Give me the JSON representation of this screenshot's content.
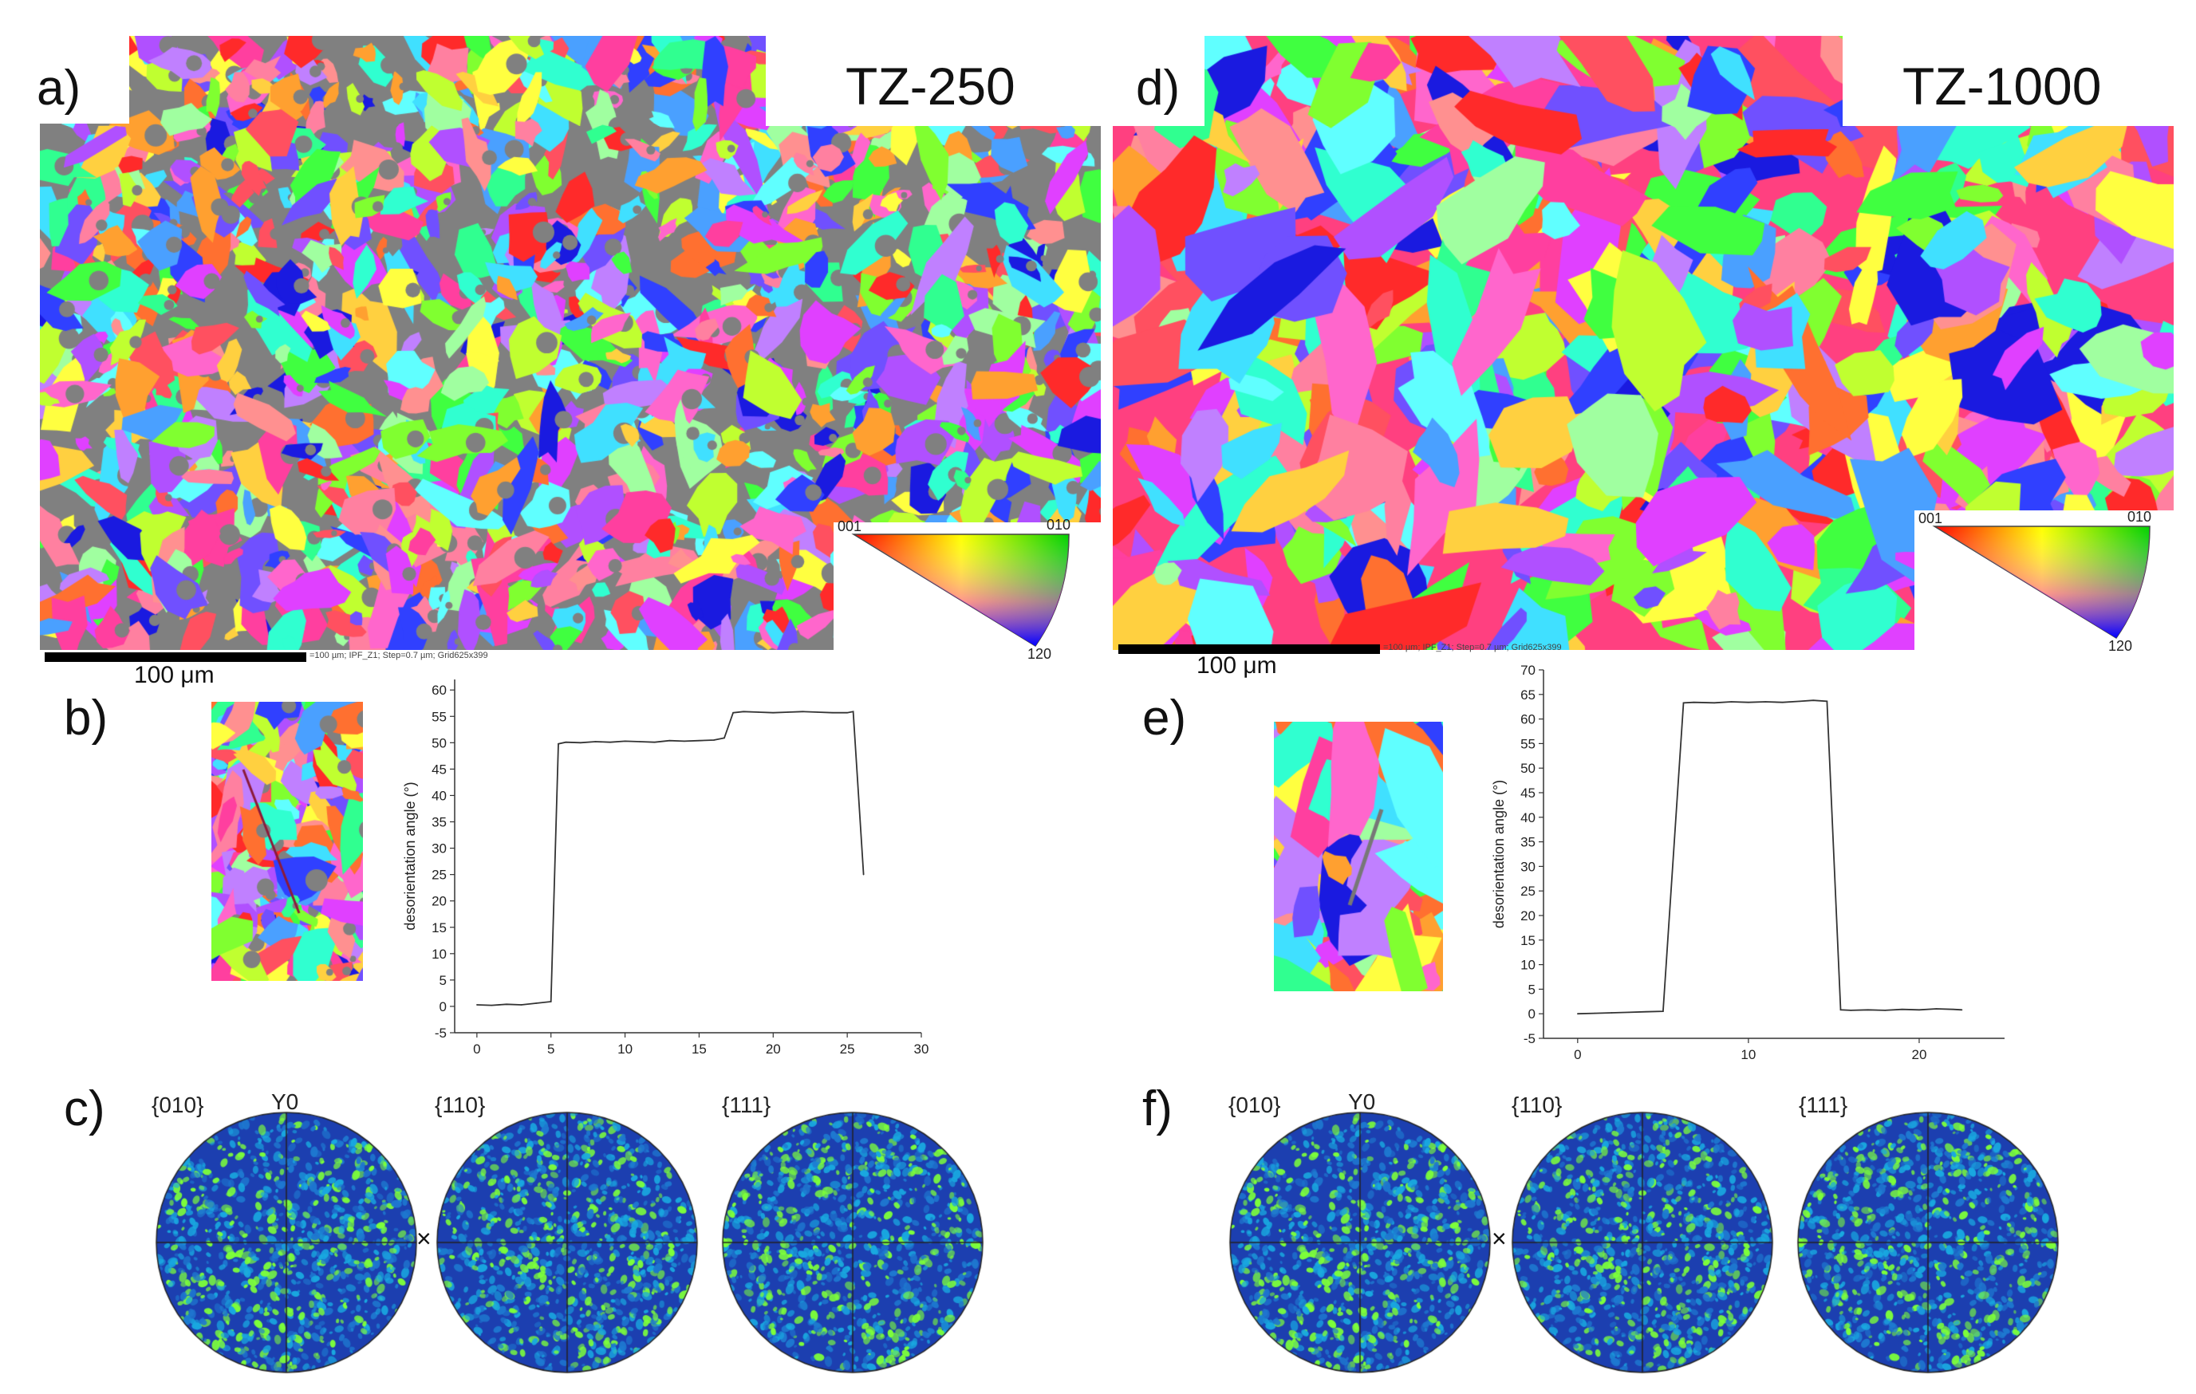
{
  "panels": {
    "a": {
      "letter": "a)",
      "title": "TZ-250",
      "scale_label": "100 μm",
      "info": "=100 µm; IPF_Z1; Step=0.7 µm; Grid625x399"
    },
    "b": {
      "letter": "b)"
    },
    "c": {
      "letter": "c)"
    },
    "d": {
      "letter": "d)",
      "title": "TZ-1000",
      "scale_label": "100 μm",
      "info": "=100 µm; IPF_Z1; Step=0.7 µm; Grid625x399"
    },
    "e": {
      "letter": "e)"
    },
    "f": {
      "letter": "f)"
    }
  },
  "ipf_key": {
    "corner_001": "001",
    "corner_010": "010",
    "corner_120": "120"
  },
  "pole_figures": {
    "labels": [
      "{010}",
      "{110}",
      "{111}"
    ],
    "y0_label": "Y0",
    "x_mark": "×"
  },
  "colors": {
    "grain_gray": "#808080",
    "pf_background": "#1c3fb0",
    "pf_hotspot": "#7dff3a",
    "profile_line": "#333333"
  },
  "chart_data": [
    {
      "type": "line",
      "title": "",
      "xlabel": "",
      "ylabel": "desorientation angle (°)",
      "xlim": [
        -1.5,
        30
      ],
      "ylim": [
        -5,
        62
      ],
      "xticks": [
        0,
        5,
        10,
        15,
        20,
        25,
        30
      ],
      "yticks": [
        -5,
        0,
        5,
        10,
        15,
        20,
        25,
        30,
        35,
        40,
        45,
        50,
        55,
        60
      ],
      "x": [
        0,
        1,
        2,
        3,
        4,
        5,
        5.5,
        6,
        7,
        8,
        9,
        10,
        11,
        12,
        13,
        14,
        15,
        16,
        16.7,
        17.3,
        18,
        19,
        20,
        21,
        22,
        23,
        24,
        25,
        25.4,
        26.1
      ],
      "y": [
        0.3,
        0.2,
        0.4,
        0.3,
        0.6,
        0.9,
        49.8,
        50.1,
        50.0,
        50.2,
        50.1,
        50.3,
        50.2,
        50.1,
        50.4,
        50.3,
        50.4,
        50.5,
        50.9,
        55.7,
        55.9,
        55.8,
        55.7,
        55.8,
        55.9,
        55.8,
        55.7,
        55.7,
        55.9,
        25.0
      ]
    },
    {
      "type": "line",
      "title": "",
      "xlabel": "",
      "ylabel": "desorientation angle (°)",
      "xlim": [
        -2,
        25
      ],
      "ylim": [
        -5,
        70
      ],
      "xticks": [
        0,
        10,
        20
      ],
      "yticks": [
        -5,
        0,
        5,
        10,
        15,
        20,
        25,
        30,
        35,
        40,
        45,
        50,
        55,
        60,
        65,
        70
      ],
      "x": [
        0,
        1,
        2,
        3,
        4,
        5,
        6.2,
        6.8,
        8,
        9,
        10,
        11,
        12,
        13,
        13.8,
        14.6,
        15.4,
        16,
        17,
        18,
        19,
        20,
        21,
        22,
        22.5
      ],
      "y": [
        0.0,
        0.1,
        0.2,
        0.3,
        0.4,
        0.5,
        63.3,
        63.4,
        63.3,
        63.5,
        63.4,
        63.5,
        63.4,
        63.6,
        63.8,
        63.6,
        0.8,
        0.7,
        0.8,
        0.7,
        0.9,
        0.8,
        1.0,
        0.9,
        0.8
      ]
    }
  ]
}
